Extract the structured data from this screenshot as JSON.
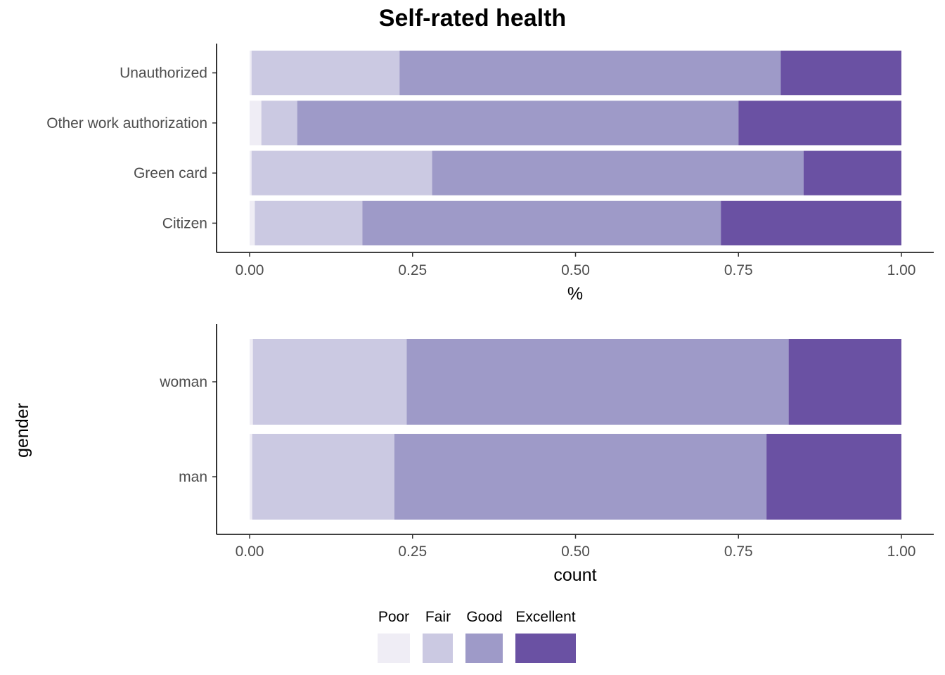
{
  "title": "Self-rated health",
  "colors": {
    "Poor": "#efedf5",
    "Fair": "#cbc9e2",
    "Good": "#9e9ac8",
    "Excellent": "#6a51a3",
    "axis": "#000000"
  },
  "legend": {
    "labels": [
      "Poor",
      "Fair",
      "Good",
      "Excellent"
    ],
    "placement": "bottom"
  },
  "chart_data": [
    {
      "type": "bar",
      "orientation": "horizontal",
      "stacked": true,
      "xlabel": "%",
      "ylabel": "",
      "xlim": [
        0,
        1
      ],
      "xticks": [
        "0.00",
        "0.25",
        "0.50",
        "0.75",
        "1.00"
      ],
      "categories": [
        "Unauthorized",
        "Other work authorization",
        "Green card",
        "Citizen"
      ],
      "series": [
        {
          "name": "Poor",
          "values": [
            0.003,
            0.018,
            0.003,
            0.008
          ]
        },
        {
          "name": "Fair",
          "values": [
            0.227,
            0.055,
            0.277,
            0.165
          ]
        },
        {
          "name": "Good",
          "values": [
            0.585,
            0.677,
            0.57,
            0.55
          ]
        },
        {
          "name": "Excellent",
          "values": [
            0.185,
            0.25,
            0.15,
            0.277
          ]
        }
      ]
    },
    {
      "type": "bar",
      "orientation": "horizontal",
      "stacked": true,
      "xlabel": "count",
      "ylabel": "gender",
      "xlim": [
        0,
        1
      ],
      "xticks": [
        "0.00",
        "0.25",
        "0.50",
        "0.75",
        "1.00"
      ],
      "categories": [
        "woman",
        "man"
      ],
      "series": [
        {
          "name": "Poor",
          "values": [
            0.005,
            0.004
          ]
        },
        {
          "name": "Fair",
          "values": [
            0.236,
            0.218
          ]
        },
        {
          "name": "Good",
          "values": [
            0.586,
            0.571
          ]
        },
        {
          "name": "Excellent",
          "values": [
            0.173,
            0.207
          ]
        }
      ]
    }
  ]
}
